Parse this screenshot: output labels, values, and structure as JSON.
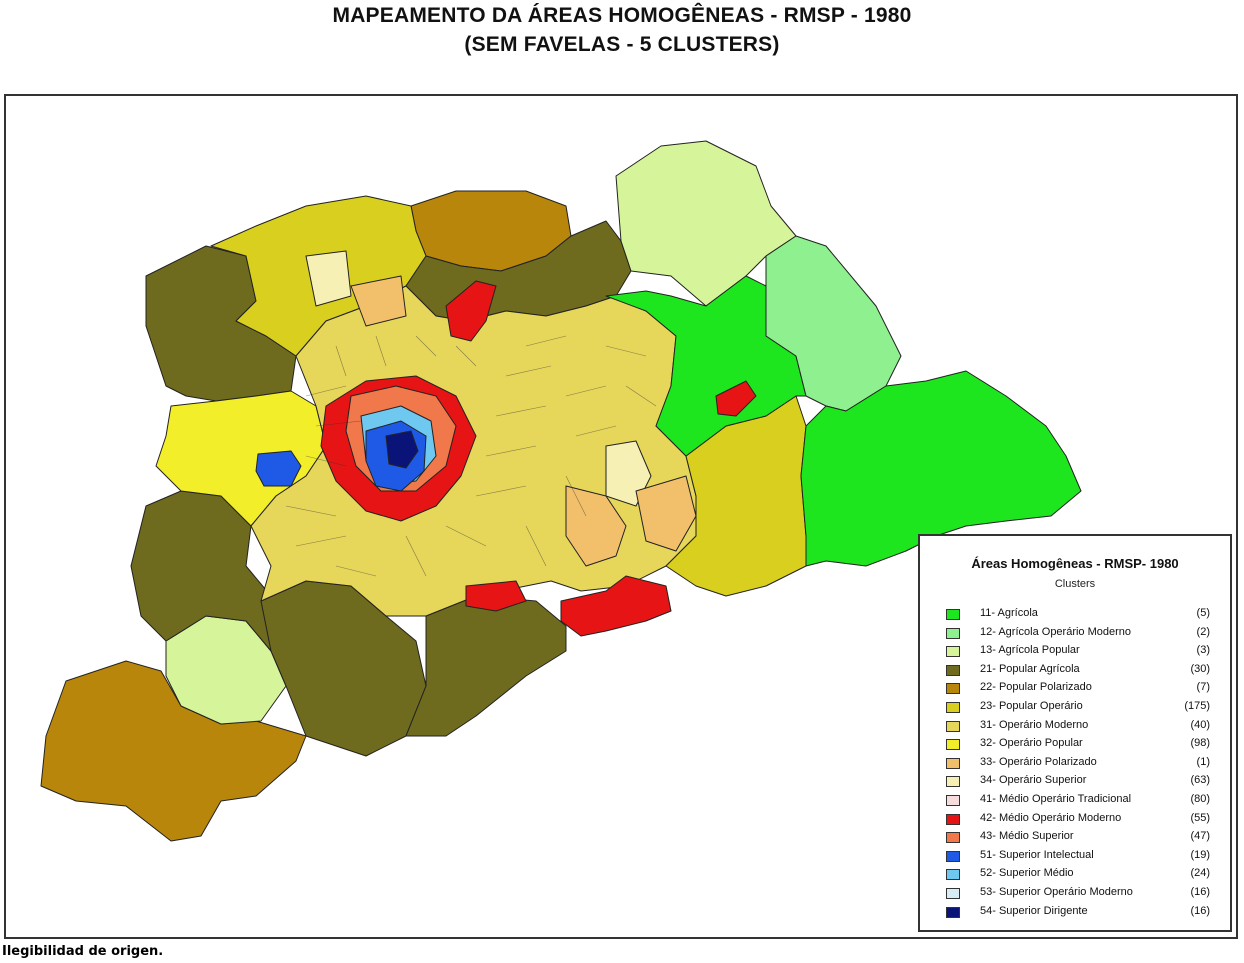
{
  "title_line1": "MAPEAMENTO DA ÁREAS HOMOGÊNEAS - RMSP - 1980",
  "title_line2": "(SEM FAVELAS - 5 CLUSTERS)",
  "legend": {
    "title": "Áreas Homogêneas - RMSP- 1980",
    "subtitle": "Clusters",
    "items": [
      {
        "label": "11- Agrícola",
        "count": "(5)",
        "color": "#1ee61e"
      },
      {
        "label": "12- Agrícola Operário Moderno",
        "count": "(2)",
        "color": "#8ef08e"
      },
      {
        "label": "13- Agrícola Popular",
        "count": "(3)",
        "color": "#d6f59a"
      },
      {
        "label": "21- Popular Agrícola",
        "count": "(30)",
        "color": "#6e6a1e"
      },
      {
        "label": "22- Popular Polarizado",
        "count": "(7)",
        "color": "#b8860b"
      },
      {
        "label": "23- Popular Operário",
        "count": "(175)",
        "color": "#d9cf1e"
      },
      {
        "label": "31- Operário Moderno",
        "count": "(40)",
        "color": "#e6d65a"
      },
      {
        "label": "32- Operário Popular",
        "count": "(98)",
        "color": "#f2ee2a"
      },
      {
        "label": "33- Operário Polarizado",
        "count": "(1)",
        "color": "#f2c06a"
      },
      {
        "label": "34- Operário Superior",
        "count": "(63)",
        "color": "#f6f0b4"
      },
      {
        "label": "41- Médio Operário Tradicional",
        "count": "(80)",
        "color": "#f6dcdc"
      },
      {
        "label": "42- Médio Operário Moderno",
        "count": "(55)",
        "color": "#e61414"
      },
      {
        "label": "43- Médio Superior",
        "count": "(47)",
        "color": "#f0784a"
      },
      {
        "label": "51- Superior Intelectual",
        "count": "(19)",
        "color": "#1e5ae6"
      },
      {
        "label": "52- Superior Médio",
        "count": "(24)",
        "color": "#6ec8f0"
      },
      {
        "label": "53- Superior Operário Moderno",
        "count": "(16)",
        "color": "#d8eef6"
      },
      {
        "label": "54- Superior Dirigente",
        "count": "(16)",
        "color": "#0a1478"
      }
    ]
  },
  "footnote": "Ilegibilidad de origen."
}
